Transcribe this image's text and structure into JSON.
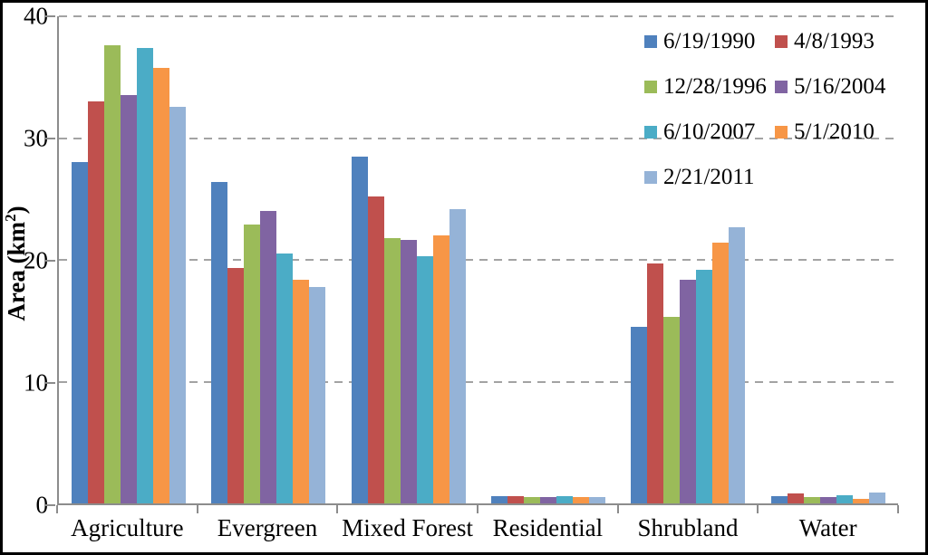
{
  "chart_data": {
    "type": "bar",
    "title": "",
    "xlabel": "",
    "ylabel": "Area (km2)",
    "ylabel_prefix": "Area (km",
    "ylabel_sup": "2",
    "ylabel_suffix": ")",
    "ylim": [
      0,
      40
    ],
    "yticks": [
      0,
      10,
      20,
      30,
      40
    ],
    "grid": "horizontal-dashed",
    "legend_position": "top-right",
    "legend_columns": 2,
    "axis_color": "#8C8C8C",
    "gridline_color": "#A3A3A3",
    "categories": [
      "Agriculture",
      "Evergreen",
      "Mixed Forest",
      "Residential",
      "Shrubland",
      "Water"
    ],
    "series": [
      {
        "name": "6/19/1990",
        "color": "#4F81BD",
        "values": [
          28.0,
          26.4,
          28.5,
          0.6,
          14.5,
          0.6
        ]
      },
      {
        "name": "4/8/1993",
        "color": "#C0504D",
        "values": [
          33.0,
          19.3,
          25.2,
          0.6,
          19.7,
          0.8
        ]
      },
      {
        "name": "12/28/1996",
        "color": "#9BBB59",
        "values": [
          37.6,
          22.9,
          21.8,
          0.5,
          15.3,
          0.5
        ]
      },
      {
        "name": "5/16/2004",
        "color": "#8064A2",
        "values": [
          33.5,
          24.0,
          21.6,
          0.5,
          18.4,
          0.5
        ]
      },
      {
        "name": "6/10/2007",
        "color": "#4BACC6",
        "values": [
          37.4,
          20.5,
          20.3,
          0.6,
          19.2,
          0.7
        ]
      },
      {
        "name": "5/1/2010",
        "color": "#F79646",
        "values": [
          35.8,
          18.4,
          22.0,
          0.5,
          21.4,
          0.4
        ]
      },
      {
        "name": "2/21/2011",
        "color": "#95B3D7",
        "values": [
          32.6,
          17.8,
          24.2,
          0.5,
          22.7,
          0.9
        ]
      }
    ]
  }
}
